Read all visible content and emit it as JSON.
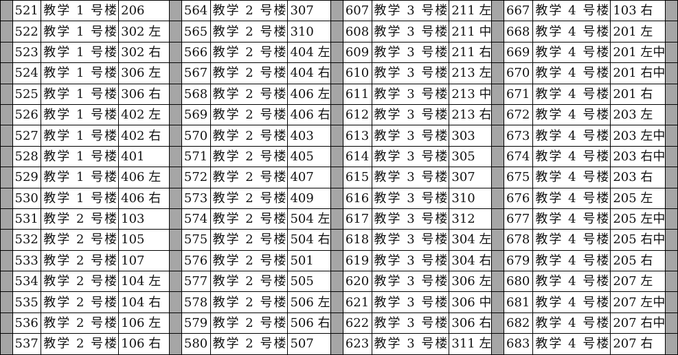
{
  "blocks": [
    {
      "rows": [
        [
          "521",
          "教学 1 号楼",
          "206"
        ],
        [
          "522",
          "教学 1 号楼",
          "302 左"
        ],
        [
          "523",
          "教学 1 号楼",
          "302 右"
        ],
        [
          "524",
          "教学 1 号楼",
          "306 左"
        ],
        [
          "525",
          "教学 1 号楼",
          "306 右"
        ],
        [
          "526",
          "教学 1 号楼",
          "402 左"
        ],
        [
          "527",
          "教学 1 号楼",
          "402 右"
        ],
        [
          "528",
          "教学 1 号楼",
          "401"
        ],
        [
          "529",
          "教学 1 号楼",
          "406 左"
        ],
        [
          "530",
          "教学 1 号楼",
          "406 右"
        ],
        [
          "531",
          "教学 2 号楼",
          "103"
        ],
        [
          "532",
          "教学 2 号楼",
          "105"
        ],
        [
          "533",
          "教学 2 号楼",
          "107"
        ],
        [
          "534",
          "教学 2 号楼",
          "104 左"
        ],
        [
          "535",
          "教学 2 号楼",
          "104 右"
        ],
        [
          "536",
          "教学 2 号楼",
          "106 左"
        ],
        [
          "537",
          "教学 2 号楼",
          "106 右"
        ]
      ]
    },
    {
      "rows": [
        [
          "564",
          "教学 2 号楼",
          "307"
        ],
        [
          "565",
          "教学 2 号楼",
          "310"
        ],
        [
          "566",
          "教学 2 号楼",
          "404 左"
        ],
        [
          "567",
          "教学 2 号楼",
          "404 右"
        ],
        [
          "568",
          "教学 2 号楼",
          "406 左"
        ],
        [
          "569",
          "教学 2 号楼",
          "406 右"
        ],
        [
          "570",
          "教学 2 号楼",
          "403"
        ],
        [
          "571",
          "教学 2 号楼",
          "405"
        ],
        [
          "572",
          "教学 2 号楼",
          "407"
        ],
        [
          "573",
          "教学 2 号楼",
          "409"
        ],
        [
          "574",
          "教学 2 号楼",
          "504 左"
        ],
        [
          "575",
          "教学 2 号楼",
          "504 右"
        ],
        [
          "576",
          "教学 2 号楼",
          "501"
        ],
        [
          "577",
          "教学 2 号楼",
          "505"
        ],
        [
          "578",
          "教学 2 号楼",
          "506 左"
        ],
        [
          "579",
          "教学 2 号楼",
          "506 右"
        ],
        [
          "580",
          "教学 2 号楼",
          "507"
        ]
      ]
    },
    {
      "rows": [
        [
          "607",
          "教学 3 号楼",
          "211 左"
        ],
        [
          "608",
          "教学 3 号楼",
          "211 中"
        ],
        [
          "609",
          "教学 3 号楼",
          "211 右"
        ],
        [
          "610",
          "教学 3 号楼",
          "213 左"
        ],
        [
          "611",
          "教学 3 号楼",
          "213 中"
        ],
        [
          "612",
          "教学 3 号楼",
          "213 右"
        ],
        [
          "613",
          "教学 3 号楼",
          "303"
        ],
        [
          "614",
          "教学 3 号楼",
          "305"
        ],
        [
          "615",
          "教学 3 号楼",
          "307"
        ],
        [
          "616",
          "教学 3 号楼",
          "310"
        ],
        [
          "617",
          "教学 3 号楼",
          "312"
        ],
        [
          "618",
          "教学 3 号楼",
          "304 左"
        ],
        [
          "619",
          "教学 3 号楼",
          "304 右"
        ],
        [
          "620",
          "教学 3 号楼",
          "306 左"
        ],
        [
          "621",
          "教学 3 号楼",
          "306 中"
        ],
        [
          "622",
          "教学 3 号楼",
          "306 右"
        ],
        [
          "623",
          "教学 3 号楼",
          "311 左"
        ]
      ]
    },
    {
      "rows": [
        [
          "667",
          "教学 4 号楼",
          "103 右"
        ],
        [
          "668",
          "教学 4 号楼",
          "201 左"
        ],
        [
          "669",
          "教学 4 号楼",
          "201 左中"
        ],
        [
          "670",
          "教学 4 号楼",
          "201 右中"
        ],
        [
          "671",
          "教学 4 号楼",
          "201 右"
        ],
        [
          "672",
          "教学 4 号楼",
          "203 左"
        ],
        [
          "673",
          "教学 4 号楼",
          "203 左中"
        ],
        [
          "674",
          "教学 4 号楼",
          "203 右中"
        ],
        [
          "675",
          "教学 4 号楼",
          "203 右"
        ],
        [
          "676",
          "教学 4 号楼",
          "205 左"
        ],
        [
          "677",
          "教学 4 号楼",
          "205 左中"
        ],
        [
          "678",
          "教学 4 号楼",
          "205 右中"
        ],
        [
          "679",
          "教学 4 号楼",
          "205 右"
        ],
        [
          "680",
          "教学 4 号楼",
          "207 左"
        ],
        [
          "681",
          "教学 4 号楼",
          "207 左中"
        ],
        [
          "682",
          "教学 4 号楼",
          "207 右中"
        ],
        [
          "683",
          "教学 4 号楼",
          "207 右"
        ]
      ]
    }
  ]
}
